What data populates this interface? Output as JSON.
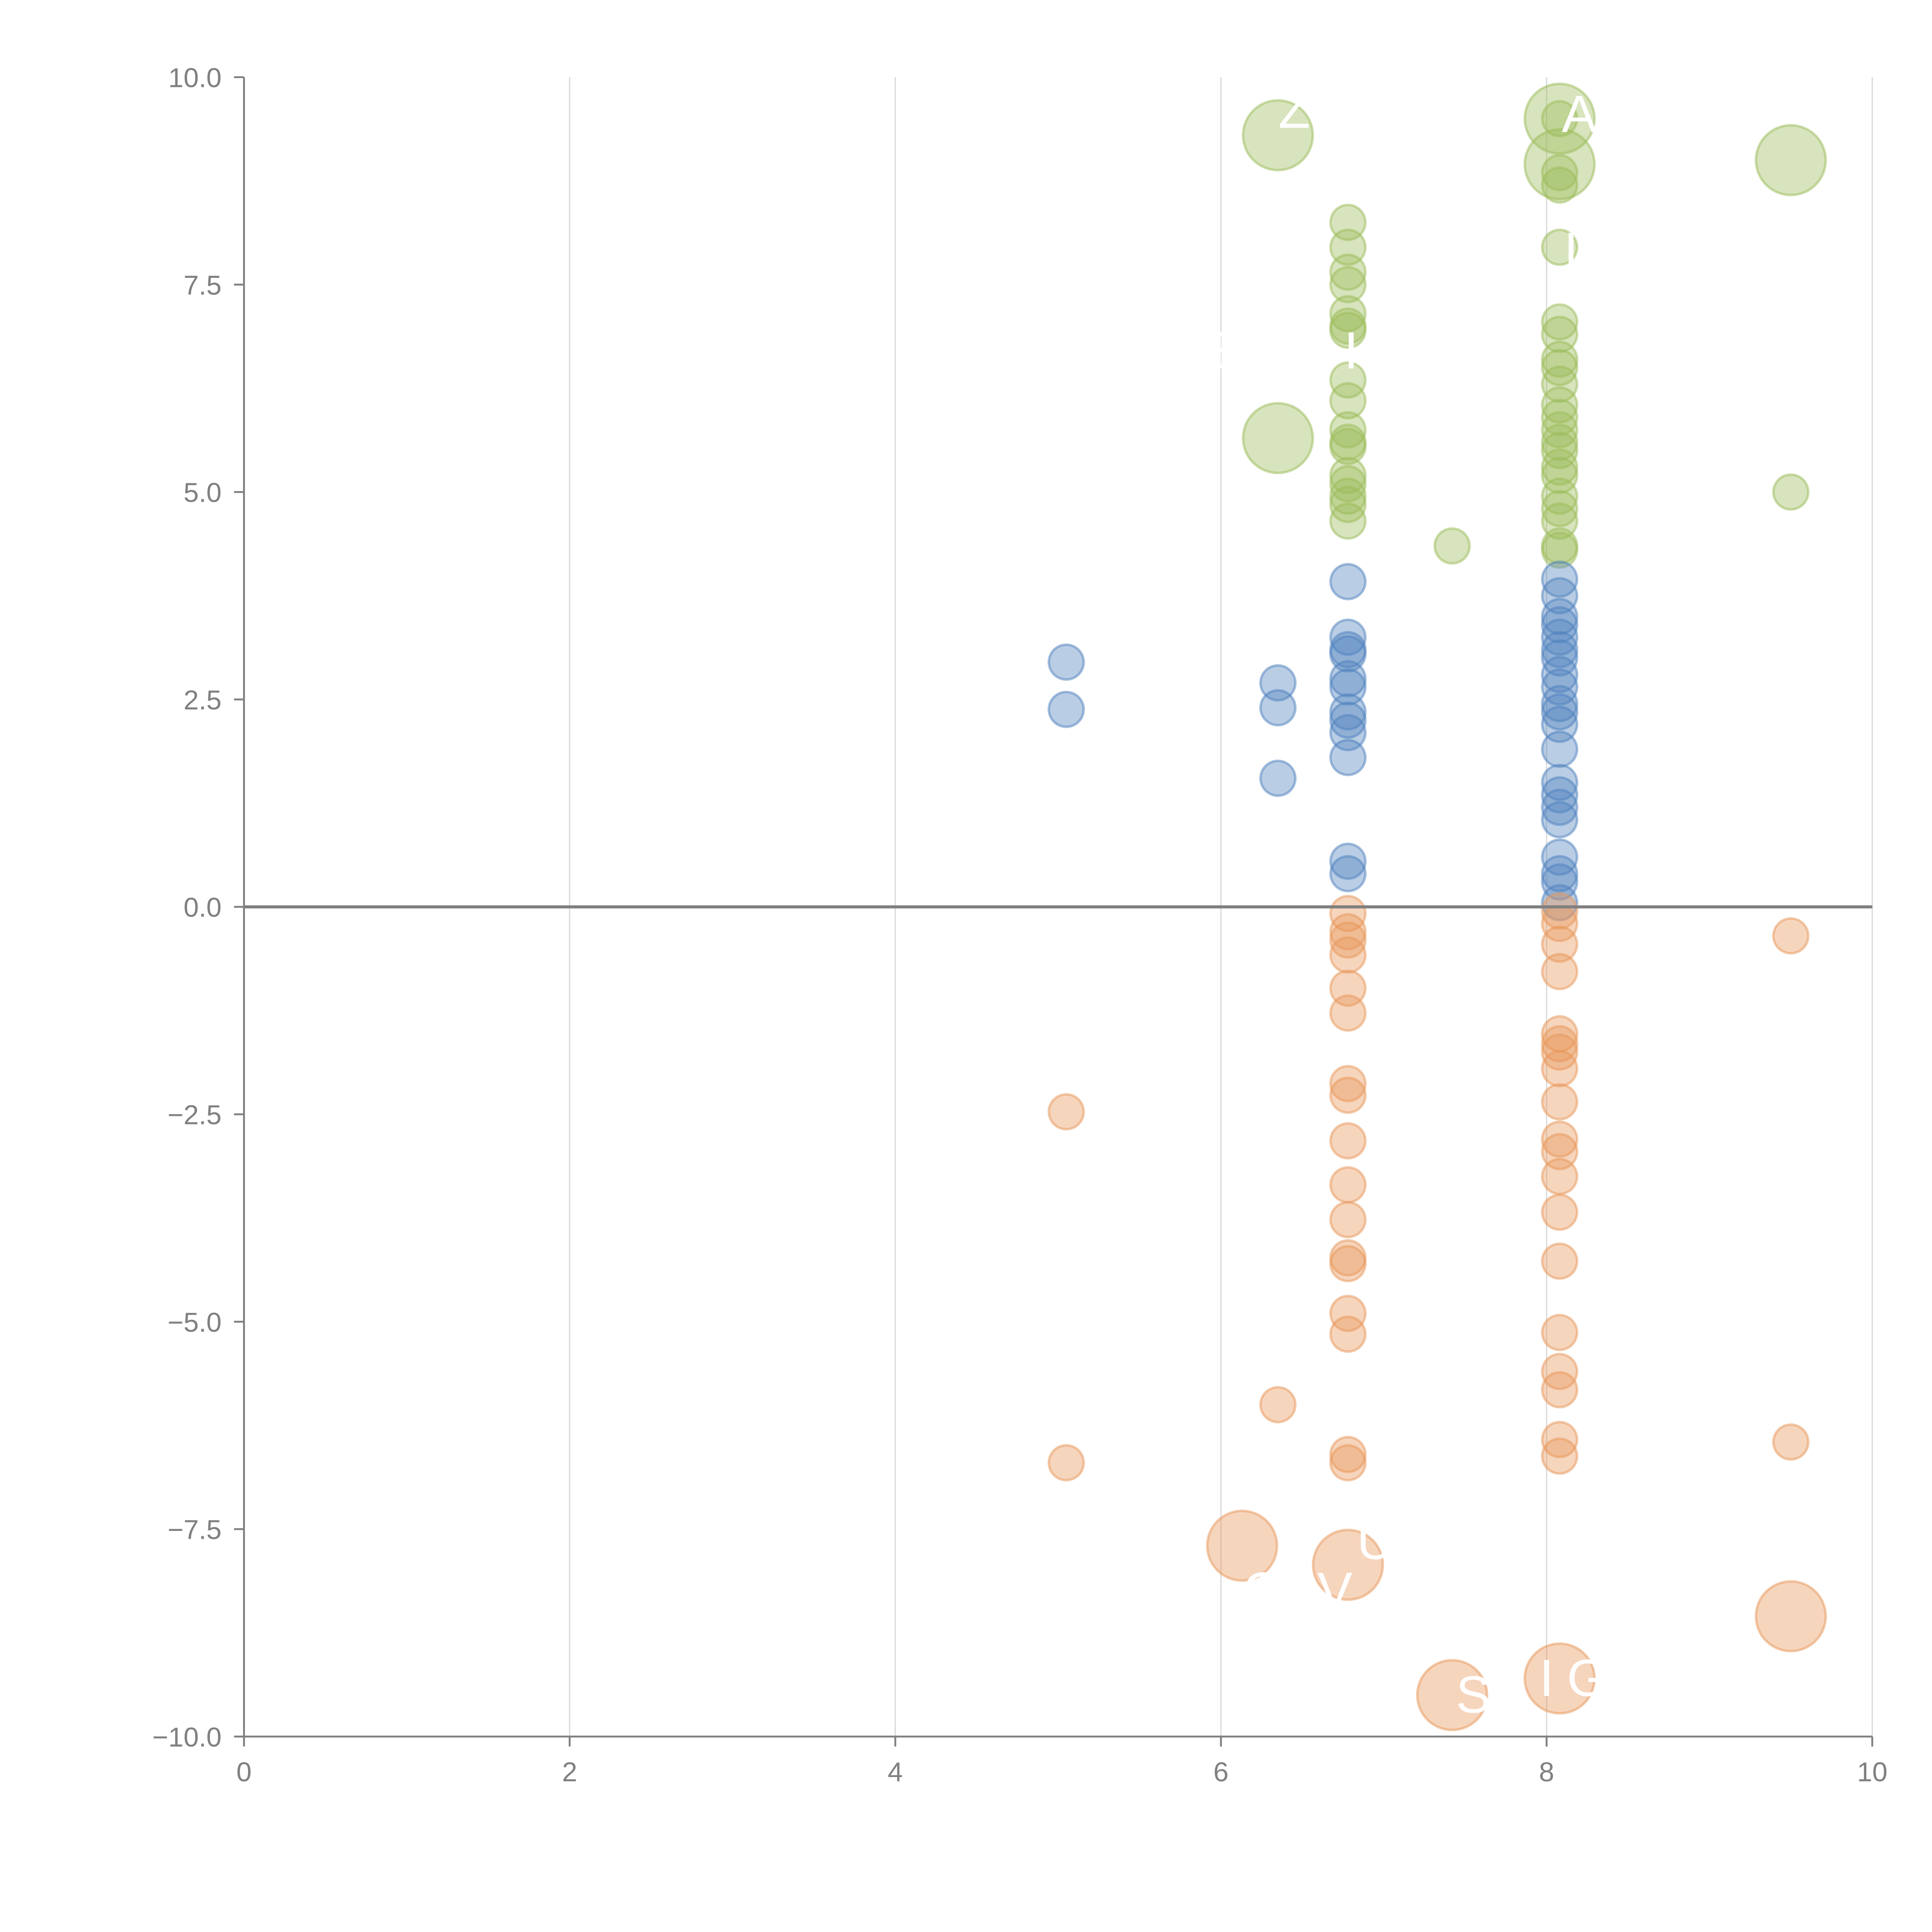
{
  "chart_data": {
    "type": "scatter",
    "title": "",
    "xlabel": "",
    "ylabel": "",
    "xlim": [
      0,
      10
    ],
    "ylim": [
      -10,
      10
    ],
    "grid": "vertical",
    "legend": "none",
    "x_ticks": [
      "0",
      "2",
      "4",
      "6",
      "8",
      "10"
    ],
    "y_ticks": [
      "10.0",
      "7.5",
      "5.0",
      "2.5",
      "0.0",
      "−2.5",
      "−5.0",
      "−7.5",
      "−10.0"
    ],
    "x_tick_values": [
      0,
      2,
      4,
      6,
      8,
      10
    ],
    "y_tick_values": [
      10,
      7.5,
      5,
      2.5,
      0,
      -2.5,
      -5,
      -7.5,
      -10
    ],
    "zero_line": 0,
    "colors": {
      "positive_high": "#9bbb59",
      "positive_low": "#4f81bd",
      "negative": "#e8975a",
      "axis": "#808080",
      "grid": "#d9d9d9",
      "label": "#ffffff"
    },
    "series": [
      {
        "name": "green",
        "color": "#9bbb59",
        "points": [
          {
            "x": 6.35,
            "y": 9.3,
            "size": "large",
            "label": "Z"
          },
          {
            "x": 6.35,
            "y": 5.65,
            "size": "large",
            "label": ""
          },
          {
            "x": 8.08,
            "y": 9.5,
            "size": "large",
            "label": "A"
          },
          {
            "x": 8.08,
            "y": 8.95,
            "size": "large",
            "label": ""
          },
          {
            "x": 9.5,
            "y": 9.0,
            "size": "large",
            "label": ""
          },
          {
            "x": 8.08,
            "y": 9.5,
            "size": "small"
          },
          {
            "x": 8.08,
            "y": 8.85,
            "size": "small"
          },
          {
            "x": 8.08,
            "y": 8.7,
            "size": "small"
          },
          {
            "x": 8.08,
            "y": 7.95,
            "size": "small",
            "label": "I"
          },
          {
            "x": 6.78,
            "y": 8.25,
            "size": "small"
          },
          {
            "x": 6.78,
            "y": 7.95,
            "size": "small"
          },
          {
            "x": 6.78,
            "y": 7.65,
            "size": "small"
          },
          {
            "x": 6.78,
            "y": 7.5,
            "size": "small"
          },
          {
            "x": 6.78,
            "y": 7.15,
            "size": "small"
          },
          {
            "x": 6.78,
            "y": 7.0,
            "size": "small"
          },
          {
            "x": 6.78,
            "y": 6.95,
            "size": "small",
            "label": "I"
          },
          {
            "x": 6.78,
            "y": 6.35,
            "size": "small"
          },
          {
            "x": 6.78,
            "y": 6.1,
            "size": "small"
          },
          {
            "x": 6.78,
            "y": 5.75,
            "size": "small"
          },
          {
            "x": 6.78,
            "y": 5.6,
            "size": "small"
          },
          {
            "x": 6.78,
            "y": 5.55,
            "size": "small"
          },
          {
            "x": 6.78,
            "y": 5.2,
            "size": "small"
          },
          {
            "x": 6.78,
            "y": 5.1,
            "size": "small"
          },
          {
            "x": 6.78,
            "y": 4.95,
            "size": "small"
          },
          {
            "x": 6.78,
            "y": 4.85,
            "size": "small"
          },
          {
            "x": 6.78,
            "y": 4.65,
            "size": "small"
          },
          {
            "x": 7.42,
            "y": 4.35,
            "size": "small"
          },
          {
            "x": 8.08,
            "y": 7.05,
            "size": "small"
          },
          {
            "x": 8.08,
            "y": 6.9,
            "size": "small"
          },
          {
            "x": 8.08,
            "y": 6.6,
            "size": "small"
          },
          {
            "x": 8.08,
            "y": 6.5,
            "size": "small"
          },
          {
            "x": 8.08,
            "y": 6.3,
            "size": "small"
          },
          {
            "x": 8.08,
            "y": 6.05,
            "size": "small"
          },
          {
            "x": 8.08,
            "y": 5.9,
            "size": "small"
          },
          {
            "x": 8.08,
            "y": 5.75,
            "size": "small"
          },
          {
            "x": 8.08,
            "y": 5.6,
            "size": "small"
          },
          {
            "x": 8.08,
            "y": 5.5,
            "size": "small"
          },
          {
            "x": 8.08,
            "y": 5.3,
            "size": "small"
          },
          {
            "x": 8.08,
            "y": 5.2,
            "size": "small"
          },
          {
            "x": 8.08,
            "y": 4.95,
            "size": "small"
          },
          {
            "x": 8.08,
            "y": 4.8,
            "size": "small"
          },
          {
            "x": 8.08,
            "y": 4.65,
            "size": "small"
          },
          {
            "x": 8.08,
            "y": 4.35,
            "size": "small"
          },
          {
            "x": 8.08,
            "y": 4.3,
            "size": "small"
          },
          {
            "x": 9.5,
            "y": 5.0,
            "size": "small"
          }
        ]
      },
      {
        "name": "blue",
        "color": "#4f81bd",
        "points": [
          {
            "x": 5.05,
            "y": 2.95,
            "size": "small"
          },
          {
            "x": 5.05,
            "y": 2.38,
            "size": "small"
          },
          {
            "x": 6.35,
            "y": 2.7,
            "size": "small"
          },
          {
            "x": 6.35,
            "y": 2.4,
            "size": "small"
          },
          {
            "x": 6.35,
            "y": 1.55,
            "size": "small"
          },
          {
            "x": 6.78,
            "y": 3.92,
            "size": "small"
          },
          {
            "x": 6.78,
            "y": 3.25,
            "size": "small"
          },
          {
            "x": 6.78,
            "y": 3.1,
            "size": "small"
          },
          {
            "x": 6.78,
            "y": 3.05,
            "size": "small"
          },
          {
            "x": 6.78,
            "y": 2.75,
            "size": "small"
          },
          {
            "x": 6.78,
            "y": 2.65,
            "size": "small"
          },
          {
            "x": 6.78,
            "y": 2.35,
            "size": "small"
          },
          {
            "x": 6.78,
            "y": 2.25,
            "size": "small"
          },
          {
            "x": 6.78,
            "y": 2.1,
            "size": "small"
          },
          {
            "x": 6.78,
            "y": 1.8,
            "size": "small"
          },
          {
            "x": 6.78,
            "y": 0.55,
            "size": "small"
          },
          {
            "x": 6.78,
            "y": 0.4,
            "size": "small"
          },
          {
            "x": 8.08,
            "y": 3.95,
            "size": "small"
          },
          {
            "x": 8.08,
            "y": 3.75,
            "size": "small"
          },
          {
            "x": 8.08,
            "y": 3.5,
            "size": "small"
          },
          {
            "x": 8.08,
            "y": 3.4,
            "size": "small"
          },
          {
            "x": 8.08,
            "y": 3.25,
            "size": "small"
          },
          {
            "x": 8.08,
            "y": 3.1,
            "size": "small"
          },
          {
            "x": 8.08,
            "y": 3.0,
            "size": "small"
          },
          {
            "x": 8.08,
            "y": 2.8,
            "size": "small"
          },
          {
            "x": 8.08,
            "y": 2.65,
            "size": "small"
          },
          {
            "x": 8.08,
            "y": 2.45,
            "size": "small"
          },
          {
            "x": 8.08,
            "y": 2.35,
            "size": "small"
          },
          {
            "x": 8.08,
            "y": 2.2,
            "size": "small"
          },
          {
            "x": 8.08,
            "y": 1.9,
            "size": "small"
          },
          {
            "x": 8.08,
            "y": 1.5,
            "size": "small"
          },
          {
            "x": 8.08,
            "y": 1.35,
            "size": "small"
          },
          {
            "x": 8.08,
            "y": 1.2,
            "size": "small"
          },
          {
            "x": 8.08,
            "y": 1.05,
            "size": "small"
          },
          {
            "x": 8.08,
            "y": 0.6,
            "size": "small"
          },
          {
            "x": 8.08,
            "y": 0.4,
            "size": "small"
          },
          {
            "x": 8.08,
            "y": 0.3,
            "size": "small"
          },
          {
            "x": 8.08,
            "y": 0.05,
            "size": "small"
          }
        ]
      },
      {
        "name": "orange",
        "color": "#e8975a",
        "points": [
          {
            "x": 5.05,
            "y": -2.47,
            "size": "small"
          },
          {
            "x": 5.05,
            "y": -6.7,
            "size": "small"
          },
          {
            "x": 6.35,
            "y": -6.0,
            "size": "small"
          },
          {
            "x": 6.78,
            "y": -0.08,
            "size": "small"
          },
          {
            "x": 6.78,
            "y": -0.3,
            "size": "small"
          },
          {
            "x": 6.78,
            "y": -0.4,
            "size": "small"
          },
          {
            "x": 6.78,
            "y": -0.58,
            "size": "small"
          },
          {
            "x": 6.78,
            "y": -0.98,
            "size": "small"
          },
          {
            "x": 6.78,
            "y": -1.28,
            "size": "small"
          },
          {
            "x": 6.78,
            "y": -2.13,
            "size": "small"
          },
          {
            "x": 6.78,
            "y": -2.27,
            "size": "small"
          },
          {
            "x": 6.78,
            "y": -2.82,
            "size": "small"
          },
          {
            "x": 6.78,
            "y": -3.35,
            "size": "small"
          },
          {
            "x": 6.78,
            "y": -3.77,
            "size": "small"
          },
          {
            "x": 6.78,
            "y": -4.23,
            "size": "small"
          },
          {
            "x": 6.78,
            "y": -4.3,
            "size": "small"
          },
          {
            "x": 6.78,
            "y": -4.9,
            "size": "small"
          },
          {
            "x": 6.78,
            "y": -5.15,
            "size": "small"
          },
          {
            "x": 6.78,
            "y": -6.6,
            "size": "small"
          },
          {
            "x": 6.78,
            "y": -6.7,
            "size": "small"
          },
          {
            "x": 8.08,
            "y": -0.05,
            "size": "small"
          },
          {
            "x": 8.08,
            "y": -0.2,
            "size": "small"
          },
          {
            "x": 8.08,
            "y": -0.45,
            "size": "small"
          },
          {
            "x": 8.08,
            "y": -0.78,
            "size": "small"
          },
          {
            "x": 8.08,
            "y": -1.53,
            "size": "small"
          },
          {
            "x": 8.08,
            "y": -1.65,
            "size": "small"
          },
          {
            "x": 8.08,
            "y": -1.75,
            "size": "small"
          },
          {
            "x": 8.08,
            "y": -1.95,
            "size": "small"
          },
          {
            "x": 8.08,
            "y": -2.35,
            "size": "small"
          },
          {
            "x": 8.08,
            "y": -2.8,
            "size": "small"
          },
          {
            "x": 8.08,
            "y": -2.95,
            "size": "small"
          },
          {
            "x": 8.08,
            "y": -3.25,
            "size": "small"
          },
          {
            "x": 8.08,
            "y": -3.68,
            "size": "small"
          },
          {
            "x": 8.08,
            "y": -4.27,
            "size": "small"
          },
          {
            "x": 8.08,
            "y": -5.13,
            "size": "small"
          },
          {
            "x": 8.08,
            "y": -5.6,
            "size": "small"
          },
          {
            "x": 8.08,
            "y": -5.82,
            "size": "small"
          },
          {
            "x": 8.08,
            "y": -6.42,
            "size": "small"
          },
          {
            "x": 8.08,
            "y": -6.62,
            "size": "small"
          },
          {
            "x": 9.5,
            "y": -0.35,
            "size": "small"
          },
          {
            "x": 9.5,
            "y": -6.45,
            "size": "small"
          },
          {
            "x": 6.13,
            "y": -7.7,
            "size": "large",
            "label": "C"
          },
          {
            "x": 6.78,
            "y": -7.93,
            "size": "large",
            "label": "U"
          },
          {
            "x": 7.42,
            "y": -9.5,
            "size": "large",
            "label": "S"
          },
          {
            "x": 8.08,
            "y": -9.3,
            "size": "large",
            "label": "G"
          },
          {
            "x": 9.5,
            "y": -8.55,
            "size": "large",
            "label": ""
          }
        ]
      }
    ],
    "text_labels": [
      {
        "text": "Z",
        "x": 6.45,
        "y": 9.6
      },
      {
        "text": "A",
        "x": 8.2,
        "y": 9.55
      },
      {
        "text": "I",
        "x": 8.15,
        "y": 7.9
      },
      {
        "text": "E",
        "x": 6.05,
        "y": 6.7
      },
      {
        "text": "I",
        "x": 6.8,
        "y": 6.7
      },
      {
        "text": "U",
        "x": 6.95,
        "y": -7.65
      },
      {
        "text": "C",
        "x": 6.25,
        "y": -8.25
      },
      {
        "text": "V",
        "x": 6.7,
        "y": -8.25
      },
      {
        "text": "S",
        "x": 7.55,
        "y": -9.5
      },
      {
        "text": "I",
        "x": 8.0,
        "y": -9.3
      },
      {
        "text": "G",
        "x": 8.25,
        "y": -9.3
      }
    ]
  }
}
